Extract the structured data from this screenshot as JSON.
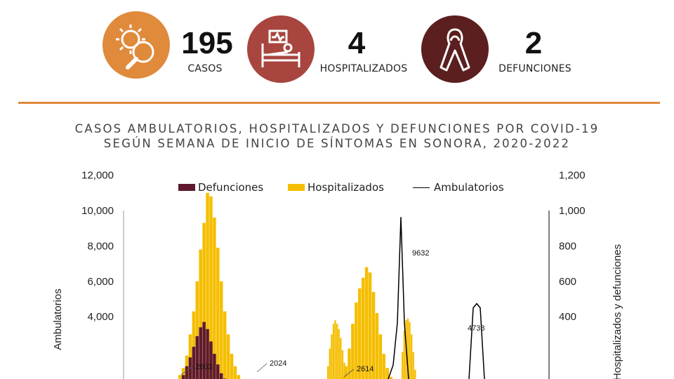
{
  "kpis": [
    {
      "value": "195",
      "label": "CASOS",
      "icon": "virus-magnifier-icon",
      "color": "#E08A3C"
    },
    {
      "value": "4",
      "label": "HOSPITALIZADOS",
      "icon": "hospital-bed-icon",
      "color": "#A8453F"
    },
    {
      "value": "2",
      "label": "DEFUNCIONES",
      "icon": "ribbon-icon",
      "color": "#5A1F1E"
    }
  ],
  "divider_color": "#E08A3C",
  "chart_data": {
    "type": "bar",
    "title": "CASOS AMBULATORIOS, HOSPITALIZADOS Y DEFUNCIONES POR COVID-19",
    "subtitle": "SEGÚN SEMANA DE INICIO DE SÍNTOMAS EN SONORA, 2020-2022",
    "ylabel": "Ambulatorios",
    "y2label": "Hospitalizados y defunciones",
    "ylim": [
      0,
      12000
    ],
    "yticks": [
      "12,000",
      "10,000",
      "8,000",
      "6,000",
      "4,000"
    ],
    "y2lim": [
      0,
      1200
    ],
    "y2ticks": [
      "1,200",
      "1,000",
      "800",
      "600",
      "400"
    ],
    "legend_position": "top-center",
    "legend": [
      "Defunciones",
      "Hospitalizados",
      "Ambulatorios"
    ],
    "series": [
      {
        "name": "Defunciones",
        "color": "#5E1A2C",
        "axis": "right",
        "values": [
          0,
          0,
          0,
          0,
          0,
          0,
          0,
          0,
          0,
          0,
          0,
          0,
          0,
          10,
          20,
          40,
          70,
          120,
          170,
          230,
          290,
          340,
          370,
          330,
          260,
          190,
          130,
          80,
          50,
          30,
          20,
          10,
          0,
          0,
          0,
          0,
          0,
          0,
          0,
          0,
          0,
          0,
          0,
          0,
          0,
          0,
          0,
          0,
          0,
          0,
          0,
          0,
          0,
          0,
          0,
          0,
          0,
          0,
          0,
          0,
          0,
          0,
          0,
          0,
          0,
          0,
          0,
          0,
          0,
          0,
          0,
          0,
          0,
          0,
          0,
          0,
          0,
          0,
          0,
          0,
          0,
          0,
          0,
          0,
          0,
          0,
          0,
          0,
          0,
          0,
          0,
          0,
          0,
          0,
          0,
          0,
          0,
          0,
          0,
          0,
          0,
          0,
          0,
          0,
          0,
          0,
          0,
          0,
          0,
          0,
          0,
          0,
          0,
          0,
          0,
          0,
          0,
          0,
          0,
          0,
          0
        ]
      },
      {
        "name": "Hospitalizados",
        "color": "#F5BE00",
        "axis": "right",
        "values": [
          0,
          0,
          0,
          0,
          0,
          0,
          0,
          0,
          0,
          0,
          0,
          0,
          0,
          20,
          40,
          70,
          110,
          180,
          300,
          430,
          600,
          780,
          930,
          1100,
          1080,
          960,
          790,
          600,
          430,
          300,
          190,
          120,
          70,
          40,
          20,
          10,
          0,
          0,
          0,
          0,
          0,
          0,
          0,
          0,
          0,
          0,
          0,
          0,
          0,
          0,
          0,
          0,
          0,
          0,
          0,
          0,
          0,
          0,
          0,
          0,
          10,
          30,
          60,
          120,
          220,
          360,
          480,
          560,
          620,
          680,
          650,
          540,
          420,
          300,
          190,
          110,
          60,
          30,
          0,
          0,
          0,
          0,
          0,
          0,
          0,
          0,
          0,
          0,
          0,
          0,
          0,
          0,
          0,
          0,
          0,
          0,
          0,
          0,
          0,
          0,
          0,
          0,
          0,
          0,
          0,
          0,
          0,
          0,
          0,
          0,
          0,
          0,
          0,
          0,
          0,
          0,
          0,
          0,
          0,
          0,
          0
        ]
      },
      {
        "name": "Ambulatorios",
        "color": "#000000",
        "axis": "left",
        "peaks": [
          {
            "label": "2603"
          },
          {
            "label": "2024"
          },
          {
            "label": "2614"
          },
          {
            "label": "9632",
            "value": 9632
          },
          {
            "label": "4738",
            "value": 4738
          }
        ]
      }
    ],
    "annotations": [
      "2603",
      "2024",
      "2614",
      "9632",
      "4738"
    ]
  }
}
